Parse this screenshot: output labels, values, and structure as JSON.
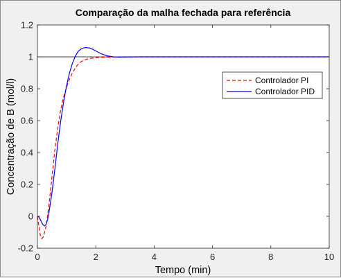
{
  "chart_data": {
    "type": "line",
    "title": "Comparação da malha fechada para referência",
    "xlabel": "Tempo (min)",
    "ylabel": "Concentração de B (mol/l)",
    "xlim": [
      0,
      10
    ],
    "ylim": [
      -0.2,
      1.2
    ],
    "xticks": [
      0,
      2,
      4,
      6,
      8,
      10
    ],
    "xtick_labels": [
      "0",
      "2",
      "4",
      "6",
      "8",
      "10"
    ],
    "yticks": [
      -0.2,
      0,
      0.2,
      0.4,
      0.6,
      0.8,
      1,
      1.2
    ],
    "ytick_labels": [
      "-0.2",
      "0",
      "0.2",
      "0.4",
      "0.6",
      "0.8",
      "1",
      "1.2"
    ],
    "grid": false,
    "reference_line": 1,
    "legend_position": "top-right",
    "series": [
      {
        "name": "Controlador PI",
        "color": "#ff0000",
        "style": "dashed",
        "x": [
          0,
          0.05,
          0.1,
          0.15,
          0.2,
          0.3,
          0.4,
          0.5,
          0.6,
          0.7,
          0.8,
          0.9,
          1.0,
          1.1,
          1.2,
          1.3,
          1.4,
          1.5,
          1.6,
          1.7,
          1.8,
          2.0,
          2.2,
          2.4,
          2.6,
          2.8,
          3.0,
          3.5,
          4.0,
          5.0,
          6.0,
          8.0,
          10.0
        ],
        "y": [
          0,
          -0.06,
          -0.12,
          -0.14,
          -0.13,
          -0.06,
          0.08,
          0.25,
          0.42,
          0.56,
          0.67,
          0.75,
          0.81,
          0.86,
          0.9,
          0.93,
          0.955,
          0.97,
          0.98,
          0.985,
          0.99,
          0.995,
          0.997,
          0.998,
          0.999,
          1.0,
          1.0,
          1.0,
          1.0,
          1.0,
          1.0,
          1.0,
          1.0
        ]
      },
      {
        "name": "Controlador PID",
        "color": "#0000ff",
        "style": "solid",
        "x": [
          0,
          0.05,
          0.1,
          0.15,
          0.2,
          0.25,
          0.3,
          0.35,
          0.4,
          0.5,
          0.6,
          0.7,
          0.8,
          0.9,
          1.0,
          1.1,
          1.2,
          1.3,
          1.4,
          1.5,
          1.6,
          1.7,
          1.8,
          1.9,
          2.0,
          2.2,
          2.4,
          2.6,
          2.8,
          3.0,
          3.5,
          4.0,
          5.0,
          6.0,
          8.0,
          10.0
        ],
        "y": [
          0,
          -0.005,
          -0.02,
          -0.04,
          -0.055,
          -0.06,
          -0.05,
          -0.02,
          0.03,
          0.15,
          0.3,
          0.46,
          0.6,
          0.72,
          0.82,
          0.9,
          0.96,
          1.005,
          1.035,
          1.05,
          1.057,
          1.058,
          1.055,
          1.047,
          1.037,
          1.018,
          1.006,
          1.0,
          0.998,
          0.999,
          1.0,
          1.0,
          1.0,
          1.0,
          1.0,
          1.0
        ]
      }
    ]
  }
}
